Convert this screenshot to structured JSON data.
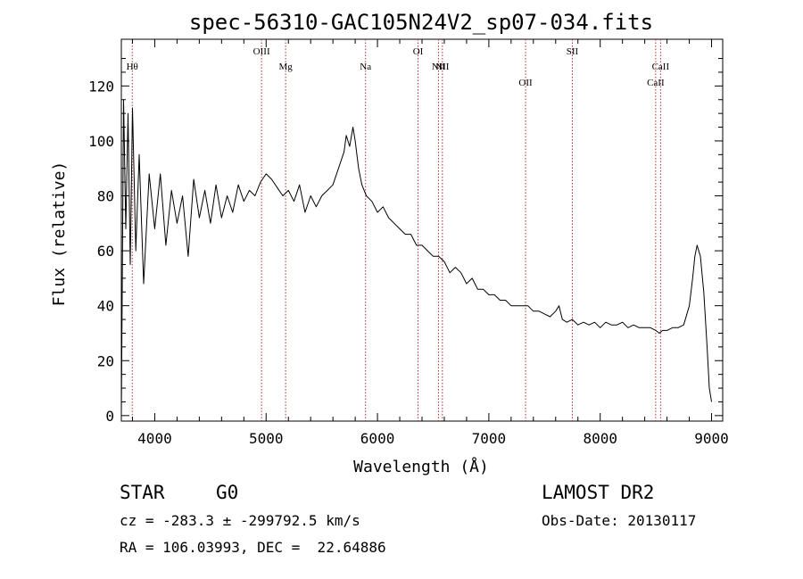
{
  "chart_data": {
    "type": "line",
    "title": "spec-56310-GAC105N24V2_sp07-034.fits",
    "xlabel": "Wavelength (Å)",
    "ylabel": "Flux (relative)",
    "xlim": [
      3700,
      9100
    ],
    "ylim": [
      -2,
      137
    ],
    "x_ticks": [
      4000,
      5000,
      6000,
      7000,
      8000,
      9000
    ],
    "x_tick_labels": [
      "4000",
      "5000",
      "6000",
      "7000",
      "8000",
      "9000"
    ],
    "y_ticks": [
      0,
      20,
      40,
      60,
      80,
      100,
      120
    ],
    "y_tick_labels": [
      "0",
      "20",
      "40",
      "60",
      "80",
      "100",
      "120"
    ],
    "line_color": "#000000",
    "marker_color": "#b03030",
    "series": [
      {
        "name": "flux",
        "x": [
          3700,
          3720,
          3740,
          3760,
          3780,
          3800,
          3830,
          3860,
          3900,
          3950,
          4000,
          4050,
          4100,
          4150,
          4200,
          4250,
          4300,
          4350,
          4400,
          4450,
          4500,
          4550,
          4600,
          4650,
          4700,
          4750,
          4800,
          4850,
          4900,
          4950,
          5000,
          5050,
          5100,
          5150,
          5200,
          5250,
          5300,
          5350,
          5400,
          5450,
          5500,
          5550,
          5600,
          5650,
          5700,
          5720,
          5750,
          5780,
          5800,
          5830,
          5860,
          5900,
          5950,
          6000,
          6050,
          6100,
          6150,
          6200,
          6250,
          6300,
          6350,
          6400,
          6450,
          6500,
          6550,
          6600,
          6650,
          6700,
          6750,
          6800,
          6850,
          6900,
          6950,
          7000,
          7050,
          7100,
          7150,
          7200,
          7250,
          7300,
          7350,
          7400,
          7450,
          7500,
          7550,
          7600,
          7630,
          7660,
          7700,
          7750,
          7800,
          7850,
          7900,
          7950,
          8000,
          8050,
          8100,
          8150,
          8200,
          8250,
          8300,
          8350,
          8400,
          8450,
          8500,
          8530,
          8560,
          8600,
          8650,
          8700,
          8750,
          8800,
          8830,
          8850,
          8870,
          8900,
          8930,
          8960,
          8980,
          9000
        ],
        "values": [
          0,
          115,
          68,
          110,
          55,
          112,
          60,
          95,
          48,
          88,
          68,
          88,
          62,
          82,
          70,
          80,
          58,
          86,
          72,
          82,
          70,
          84,
          72,
          80,
          74,
          84,
          78,
          82,
          80,
          85,
          88,
          86,
          83,
          80,
          82,
          78,
          84,
          74,
          80,
          76,
          80,
          82,
          84,
          90,
          96,
          102,
          98,
          105,
          100,
          90,
          84,
          80,
          78,
          74,
          76,
          72,
          70,
          68,
          66,
          66,
          62,
          62,
          60,
          58,
          58,
          56,
          52,
          54,
          52,
          48,
          50,
          46,
          46,
          44,
          44,
          42,
          42,
          40,
          40,
          40,
          40,
          38,
          38,
          37,
          36,
          38,
          40,
          35,
          34,
          35,
          33,
          34,
          33,
          34,
          32,
          34,
          33,
          33,
          34,
          32,
          33,
          32,
          32,
          32,
          31,
          30,
          31,
          31,
          32,
          32,
          33,
          40,
          50,
          58,
          62,
          58,
          45,
          25,
          10,
          5
        ]
      }
    ],
    "lines": [
      {
        "name": "Hθ",
        "x": 3798,
        "row": "upper",
        "markup": "H&#952;"
      },
      {
        "name": "OIII",
        "x": 4959,
        "row": "top",
        "markup": "OIII"
      },
      {
        "name": "Mg",
        "x": 5175,
        "row": "upper",
        "markup": "Mg"
      },
      {
        "name": "Na",
        "x": 5893,
        "row": "upper",
        "markup": "Na"
      },
      {
        "name": "OI",
        "x": 6364,
        "row": "top",
        "markup": "OI"
      },
      {
        "name": "NII",
        "x": 6548,
        "row": "upper",
        "markup": "NII"
      },
      {
        "name": "NII",
        "x": 6583,
        "row": "upper",
        "markup": "NII"
      },
      {
        "name": "OII",
        "x": 7330,
        "row": "lower",
        "markup": "OII"
      },
      {
        "name": "SII",
        "x": 7750,
        "row": "top",
        "markup": "SII"
      },
      {
        "name": "CaII",
        "x": 8498,
        "row": "lower",
        "markup": "CaII"
      },
      {
        "name": "CaII",
        "x": 8542,
        "row": "upper",
        "markup": "CaII"
      }
    ]
  },
  "info": {
    "object_class": "STAR",
    "subclass": "G0",
    "survey": "LAMOST DR2",
    "velocity": "cz = -283.3 ± -299792.5 km/s",
    "obs_date": "Obs-Date: 20130117",
    "coordinates": "RA = 106.03993, DEC =  22.64886"
  }
}
